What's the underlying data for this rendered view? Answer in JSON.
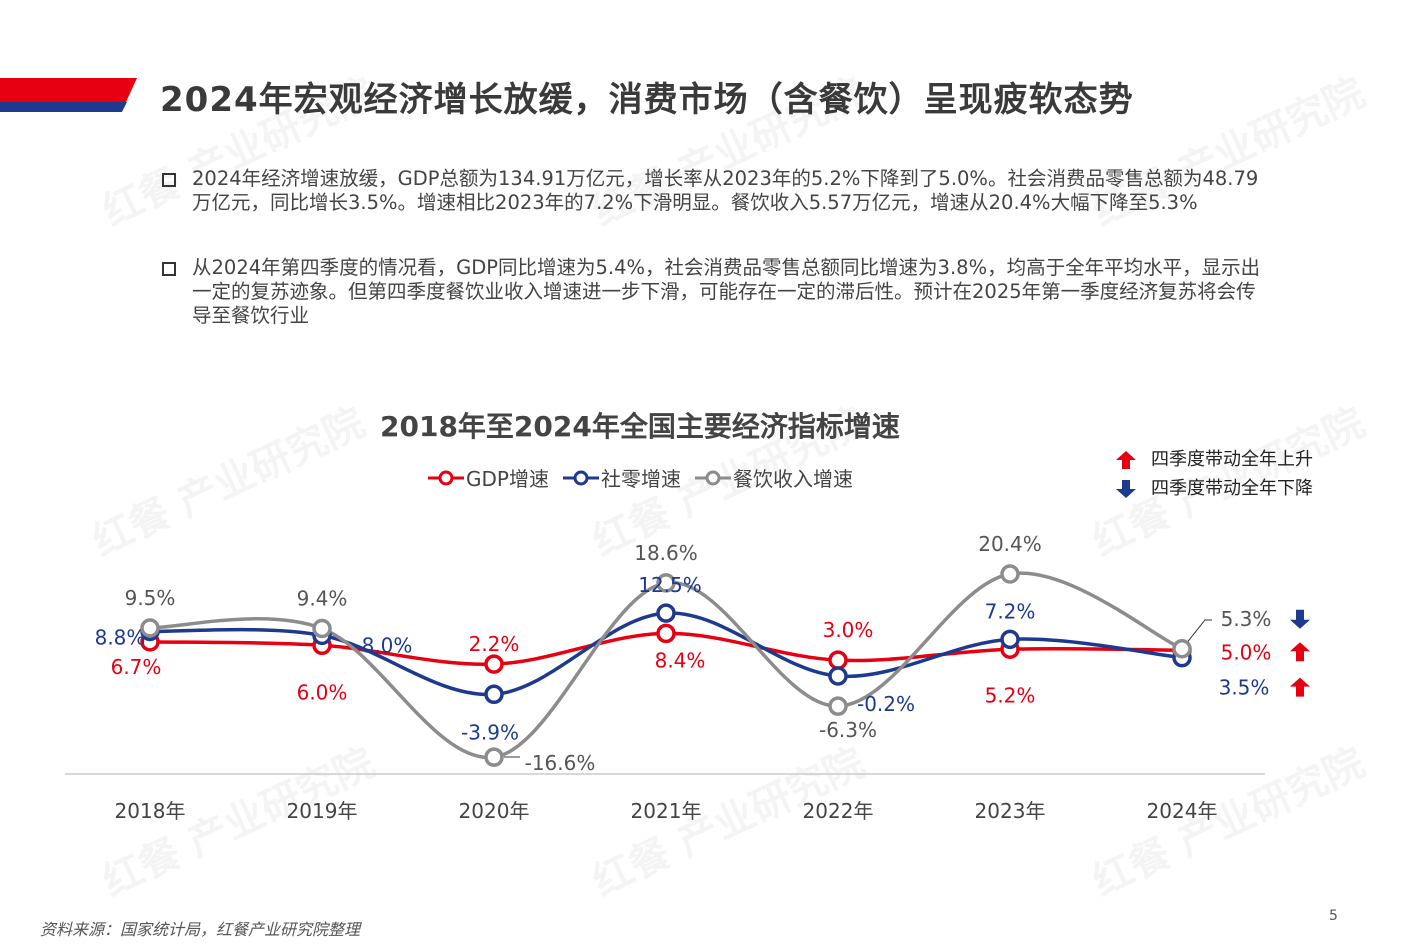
{
  "header": {
    "title": "2024年宏观经济增长放缓，消费市场（含餐饮）呈现疲软态势",
    "accent_red": "#e60012",
    "accent_blue": "#1d3a8f"
  },
  "bullets": [
    "2024年经济增速放缓，GDP总额为134.91万亿元，增长率从2023年的5.2%下降到了5.0%。社会消费品零售总额为48.79万亿元，同比增长3.5%。增速相比2023年的7.2%下滑明显。餐饮收入5.57万亿元，增速从20.4%大幅下降至5.3%",
    "从2024年第四季度的情况看，GDP同比增速为5.4%，社会消费品零售总额同比增速为3.8%，均高于全年平均水平，显示出一定的复苏迹象。但第四季度餐饮业收入增速进一步下滑，可能存在一定的滞后性。预计在2025年第一季度经济复苏将会传导至餐饮行业"
  ],
  "chart_data": {
    "type": "line",
    "title": "2018年至2024年全国主要经济指标增速",
    "categories": [
      "2018年",
      "2019年",
      "2020年",
      "2021年",
      "2022年",
      "2023年",
      "2024年"
    ],
    "series": [
      {
        "name": "GDP增速",
        "color": "#e60012",
        "values": [
          6.7,
          6.0,
          2.2,
          8.4,
          3.0,
          5.2,
          5.0
        ],
        "labels": [
          "6.7%",
          "6.0%",
          "2.2%",
          "8.4%",
          "3.0%",
          "5.2%",
          "5.0%"
        ]
      },
      {
        "name": "社零增速",
        "color": "#1d3a8f",
        "values": [
          8.8,
          8.0,
          -3.9,
          12.5,
          -0.2,
          7.2,
          3.5
        ],
        "labels": [
          "8.8%",
          "8.0%",
          "-3.9%",
          "12.5%",
          "-0.2%",
          "7.2%",
          "3.5%"
        ]
      },
      {
        "name": "餐饮收入增速",
        "color": "#8c8c8c",
        "values": [
          9.5,
          9.4,
          -16.6,
          18.6,
          -6.3,
          20.4,
          5.3
        ],
        "labels": [
          "9.5%",
          "9.4%",
          "-16.6%",
          "18.6%",
          "-6.3%",
          "20.4%",
          "5.3%"
        ]
      }
    ],
    "smooth": true,
    "grid": false,
    "legend": "top",
    "q4_legend": [
      {
        "label": "四季度带动全年上升",
        "direction": "up",
        "color": "#e60012"
      },
      {
        "label": "四季度带动全年下降",
        "direction": "down",
        "color": "#1d3a8f"
      }
    ],
    "q4_markers_2024": {
      "餐饮收入增速": "down",
      "GDP增速": "up",
      "社零增速": "up"
    }
  },
  "footer": {
    "source": "资料来源：国家统计局，红餐产业研究院整理",
    "page": "5"
  },
  "watermark": "红餐 产业研究院"
}
